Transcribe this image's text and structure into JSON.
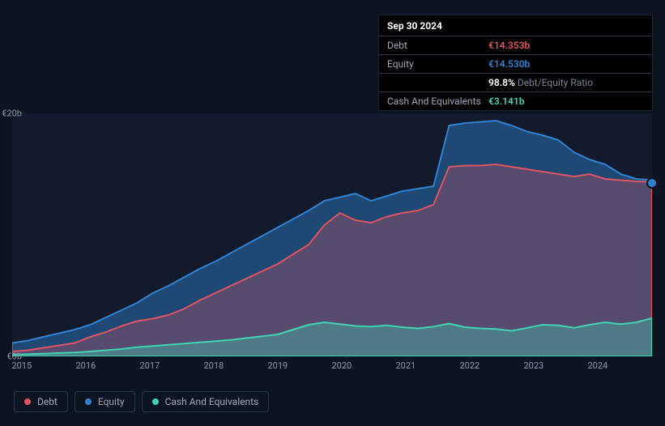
{
  "chart": {
    "type": "area",
    "background_color": "#0d1421",
    "plot_background": "#121a2b",
    "grid_color": "#1a2332",
    "text_color": "#8b93a6",
    "currency": "€",
    "x_categories": [
      "2015",
      "2016",
      "2017",
      "2018",
      "2019",
      "2020",
      "2021",
      "2022",
      "2023",
      "2024"
    ],
    "y_ticks": [
      0,
      20
    ],
    "y_tick_labels": [
      "€0b",
      "€20b"
    ],
    "ylim": [
      0,
      20
    ],
    "series": [
      {
        "name": "Equity",
        "color": "#2e82d1",
        "fill": "rgba(46,130,209,0.45)",
        "z": 1,
        "data": [
          1.1,
          1.3,
          1.6,
          1.9,
          2.2,
          2.6,
          3.2,
          3.8,
          4.4,
          5.2,
          5.8,
          6.5,
          7.2,
          7.8,
          8.5,
          9.2,
          9.9,
          10.6,
          11.3,
          12.0,
          12.8,
          13.1,
          13.4,
          12.8,
          13.2,
          13.6,
          13.8,
          14.0,
          19.0,
          19.2,
          19.3,
          19.4,
          19.0,
          18.5,
          18.2,
          17.8,
          16.8,
          16.2,
          15.8,
          15.0,
          14.6,
          14.53
        ]
      },
      {
        "name": "Debt",
        "color": "#e15361",
        "fill": "rgba(225,83,97,0.30)",
        "z": 2,
        "data": [
          0.4,
          0.5,
          0.7,
          0.9,
          1.1,
          1.6,
          2.0,
          2.5,
          2.9,
          3.1,
          3.4,
          3.9,
          4.6,
          5.2,
          5.8,
          6.4,
          7.0,
          7.6,
          8.4,
          9.2,
          10.8,
          11.8,
          11.2,
          11.0,
          11.5,
          11.8,
          12.0,
          12.5,
          15.6,
          15.7,
          15.7,
          15.8,
          15.6,
          15.4,
          15.2,
          15.0,
          14.8,
          15.0,
          14.6,
          14.5,
          14.4,
          14.35
        ]
      },
      {
        "name": "Cash And Equivalents",
        "color": "#3fd4b4",
        "fill": "rgba(63,212,180,0.35)",
        "z": 3,
        "data": [
          0.15,
          0.18,
          0.22,
          0.27,
          0.32,
          0.4,
          0.5,
          0.6,
          0.75,
          0.85,
          0.95,
          1.05,
          1.15,
          1.25,
          1.35,
          1.5,
          1.65,
          1.8,
          2.2,
          2.6,
          2.8,
          2.65,
          2.5,
          2.45,
          2.55,
          2.4,
          2.3,
          2.45,
          2.7,
          2.4,
          2.3,
          2.25,
          2.1,
          2.35,
          2.6,
          2.55,
          2.35,
          2.6,
          2.8,
          2.65,
          2.8,
          3.14
        ]
      }
    ],
    "end_marker": {
      "series": "Equity",
      "color": "#2e82d1"
    }
  },
  "tooltip": {
    "date": "Sep 30 2024",
    "rows": [
      {
        "label": "Debt",
        "value": "€14.353b",
        "color": "#e15361"
      },
      {
        "label": "Equity",
        "value": "€14.530b",
        "color": "#2e82d1"
      },
      {
        "label": "",
        "value": "98.8%",
        "suffix": "Debt/Equity Ratio",
        "color": "#ffffff"
      },
      {
        "label": "Cash And Equivalents",
        "value": "€3.141b",
        "color": "#3fd4b4"
      }
    ]
  },
  "legend": {
    "items": [
      {
        "label": "Debt",
        "color": "#e15361"
      },
      {
        "label": "Equity",
        "color": "#2e82d1"
      },
      {
        "label": "Cash And Equivalents",
        "color": "#3fd4b4"
      }
    ]
  }
}
